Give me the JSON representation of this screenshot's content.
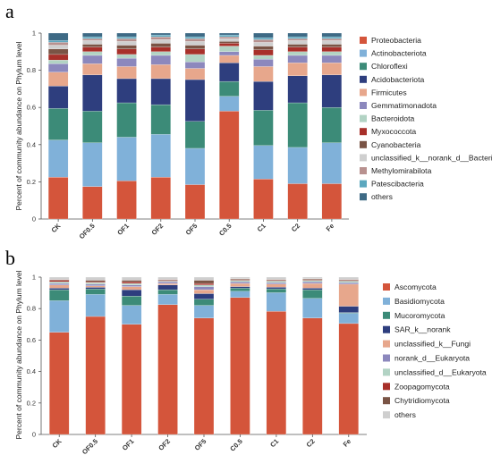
{
  "chart_data": [
    {
      "type": "bar",
      "stacked": true,
      "panel": "a",
      "title": "",
      "xlabel": "",
      "ylabel": "Percent of community abundance on Phylum level",
      "ylim": [
        0,
        1
      ],
      "yticks": [
        "0",
        "0.2",
        "0.4",
        "0.6",
        "0.8",
        "1"
      ],
      "categories": [
        "CK",
        "OF0.5",
        "OF1",
        "OF2",
        "OF5",
        "C0.5",
        "C1",
        "C2",
        "Fe"
      ],
      "legend_position": "right",
      "series": [
        {
          "name": "Proteobacteria",
          "color": "#d4553b",
          "values": [
            0.225,
            0.175,
            0.205,
            0.225,
            0.185,
            0.58,
            0.215,
            0.19,
            0.19
          ]
        },
        {
          "name": "Actinobacteriota",
          "color": "#80b1d9",
          "values": [
            0.2,
            0.235,
            0.235,
            0.23,
            0.195,
            0.08,
            0.18,
            0.195,
            0.22
          ]
        },
        {
          "name": "Chloroflexi",
          "color": "#3c8b78",
          "values": [
            0.17,
            0.17,
            0.185,
            0.16,
            0.145,
            0.08,
            0.19,
            0.24,
            0.19
          ]
        },
        {
          "name": "Acidobacteriota",
          "color": "#2e3e7e",
          "values": [
            0.12,
            0.195,
            0.13,
            0.14,
            0.225,
            0.1,
            0.155,
            0.145,
            0.175
          ]
        },
        {
          "name": "Firmicutes",
          "color": "#e7a78c",
          "values": [
            0.075,
            0.06,
            0.065,
            0.075,
            0.06,
            0.04,
            0.08,
            0.07,
            0.065
          ]
        },
        {
          "name": "Gemmatimonadota",
          "color": "#8c88bd",
          "values": [
            0.045,
            0.045,
            0.045,
            0.05,
            0.035,
            0.02,
            0.04,
            0.04,
            0.04
          ]
        },
        {
          "name": "Bacteroidota",
          "color": "#b2d3c4",
          "values": [
            0.02,
            0.02,
            0.02,
            0.02,
            0.04,
            0.03,
            0.02,
            0.02,
            0.02
          ]
        },
        {
          "name": "Myxococcota",
          "color": "#a8302a",
          "values": [
            0.03,
            0.025,
            0.03,
            0.025,
            0.03,
            0.015,
            0.03,
            0.025,
            0.025
          ]
        },
        {
          "name": "Cyanobacteria",
          "color": "#7a5445",
          "values": [
            0.03,
            0.015,
            0.02,
            0.02,
            0.02,
            0.01,
            0.02,
            0.015,
            0.015
          ]
        },
        {
          "name": "unclassified_k__norank_d__Bacteria",
          "color": "#cfcfcf",
          "values": [
            0.02,
            0.02,
            0.02,
            0.02,
            0.02,
            0.015,
            0.02,
            0.02,
            0.02
          ]
        },
        {
          "name": "Methylomirabilota",
          "color": "#b8918f",
          "values": [
            0.015,
            0.01,
            0.015,
            0.015,
            0.015,
            0.01,
            0.015,
            0.01,
            0.01
          ]
        },
        {
          "name": "Patescibacteria",
          "color": "#5ba7be",
          "values": [
            0.01,
            0.01,
            0.01,
            0.01,
            0.01,
            0.01,
            0.01,
            0.01,
            0.01
          ]
        },
        {
          "name": "others",
          "color": "#3e6a85",
          "values": [
            0.04,
            0.02,
            0.02,
            0.01,
            0.02,
            0.01,
            0.025,
            0.02,
            0.02
          ]
        }
      ]
    },
    {
      "type": "bar",
      "stacked": true,
      "panel": "b",
      "title": "",
      "xlabel": "",
      "ylabel": "Percent of community abundance on Phylum level",
      "ylim": [
        0,
        1
      ],
      "yticks": [
        "0",
        "0.2",
        "0.4",
        "0.6",
        "0.8",
        "1"
      ],
      "categories": [
        "CK",
        "OF0.5",
        "OF1",
        "OF2",
        "OF5",
        "C0.5",
        "C1",
        "C2",
        "Fe"
      ],
      "legend_position": "right",
      "series": [
        {
          "name": "Ascomycota",
          "color": "#d4553b",
          "values": [
            0.65,
            0.75,
            0.7,
            0.825,
            0.74,
            0.87,
            0.79,
            0.74,
            0.705
          ]
        },
        {
          "name": "Basidiomycota",
          "color": "#80b1d9",
          "values": [
            0.2,
            0.14,
            0.12,
            0.065,
            0.08,
            0.04,
            0.12,
            0.125,
            0.065
          ]
        },
        {
          "name": "Mucoromycota",
          "color": "#3c8b78",
          "values": [
            0.07,
            0.035,
            0.06,
            0.03,
            0.04,
            0.02,
            0.025,
            0.055,
            0.005
          ]
        },
        {
          "name": "SAR_k__norank",
          "color": "#2e3e7e",
          "values": [
            0.01,
            0.01,
            0.04,
            0.03,
            0.035,
            0.01,
            0.01,
            0.01,
            0.04
          ]
        },
        {
          "name": "unclassified_k__Fungi",
          "color": "#e7a78c",
          "values": [
            0.02,
            0.01,
            0.02,
            0.01,
            0.025,
            0.02,
            0.02,
            0.03,
            0.14
          ]
        },
        {
          "name": "norank_d__Eukaryota",
          "color": "#8c88bd",
          "values": [
            0.01,
            0.01,
            0.01,
            0.01,
            0.02,
            0.01,
            0.01,
            0.01,
            0.01
          ]
        },
        {
          "name": "unclassified_d__Eukaryota",
          "color": "#b2d3c4",
          "values": [
            0.01,
            0.01,
            0.01,
            0.005,
            0.01,
            0.01,
            0.01,
            0.01,
            0.01
          ]
        },
        {
          "name": "Zoopagomycota",
          "color": "#a8302a",
          "values": [
            0.01,
            0.005,
            0.01,
            0.005,
            0.01,
            0.005,
            0.005,
            0.005,
            0.005
          ]
        },
        {
          "name": "Chytridiomycota",
          "color": "#7a5445",
          "values": [
            0.005,
            0.01,
            0.01,
            0.005,
            0.02,
            0.005,
            0.005,
            0.005,
            0.005
          ]
        },
        {
          "name": "others",
          "color": "#cfcfcf",
          "values": [
            0.015,
            0.02,
            0.02,
            0.015,
            0.02,
            0.01,
            0.015,
            0.01,
            0.015
          ]
        }
      ]
    }
  ],
  "panel_labels": [
    "a",
    "b"
  ]
}
